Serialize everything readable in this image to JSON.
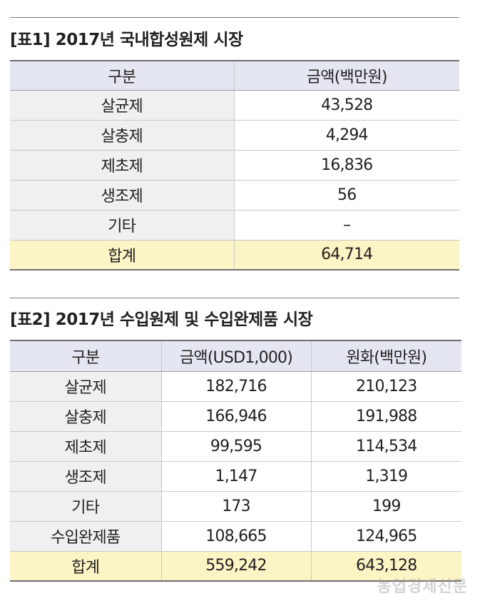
{
  "table1": {
    "title": "[표1] 2017년 국내합성원제 시장",
    "headers": [
      "구분",
      "금액(백만원)"
    ],
    "rows": [
      [
        "살균제",
        "43,528"
      ],
      [
        "살충제",
        "4,294"
      ],
      [
        "제초제",
        "16,836"
      ],
      [
        "생조제",
        "56"
      ],
      [
        "기타",
        "–"
      ]
    ],
    "total": [
      "합계",
      "64,714"
    ]
  },
  "table2": {
    "title": "[표2] 2017년 수입원제 및 수입완제품 시장",
    "headers": [
      "구분",
      "금액(USD1,000)",
      "원화(백만원)"
    ],
    "rows": [
      [
        "살균제",
        "182,716",
        "210,123"
      ],
      [
        "살충제",
        "166,946",
        "191,988"
      ],
      [
        "제초제",
        "99,595",
        "114,534"
      ],
      [
        "생조제",
        "1,147",
        "1,319"
      ],
      [
        "기타",
        "173",
        "199"
      ],
      [
        "수입완제품",
        "108,665",
        "124,965"
      ]
    ],
    "total": [
      "합계",
      "559,242",
      "643,128"
    ]
  },
  "watermark": "농업경제신문"
}
